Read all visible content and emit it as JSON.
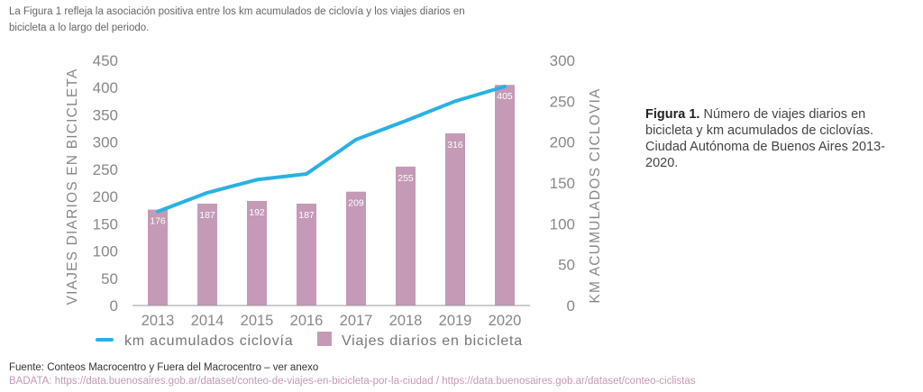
{
  "intro_text": "La Figura 1 refleja la asociación positiva entre los km acumulados de ciclovía y los viajes diarios en bicicleta a lo largo del periodo.",
  "caption": {
    "bold": "Figura 1.",
    "text": " Número de viajes diarios en bicicleta y km acumulados de ciclovías. Ciudad Autónoma de Buenos Aires 2013-2020."
  },
  "source": "Fuente: Conteos Macrocentro y Fuera del Macrocentro – ver anexo",
  "badata": "BADATA: https://data.buenosaires.gob.ar/dataset/conteo-de-viajes-en-bicicleta-por-la-ciudad / https://data.buenosaires.gob.ar/dataset/conteo-ciclistas",
  "colors": {
    "bar": "#c49ab6",
    "line": "#29b1e3",
    "axis": "#999999",
    "tick": "#888888"
  },
  "chart_data": {
    "type": "bar",
    "categories": [
      "2013",
      "2014",
      "2015",
      "2016",
      "2017",
      "2018",
      "2019",
      "2020"
    ],
    "series": [
      {
        "name": "Viajes diarios en bicicleta",
        "type": "bar",
        "axis": "left",
        "values": [
          176,
          187,
          192,
          187,
          209,
          255,
          316,
          405
        ]
      },
      {
        "name": "km acumulados ciclovía",
        "type": "line",
        "axis": "right",
        "values": [
          115,
          138,
          154,
          161,
          203,
          226,
          250,
          268
        ]
      }
    ],
    "ylabel": "VIAJES DIARIOS EN BICICLETA",
    "y2label": "KM ACUMULADOS CICLOVIA",
    "ylim": [
      0,
      450
    ],
    "y2lim": [
      0,
      300
    ],
    "yticks": [
      0,
      50,
      100,
      150,
      200,
      250,
      300,
      350,
      400,
      450
    ],
    "y2ticks": [
      0,
      50,
      100,
      150,
      200,
      250,
      300
    ],
    "legend_position": "bottom"
  }
}
